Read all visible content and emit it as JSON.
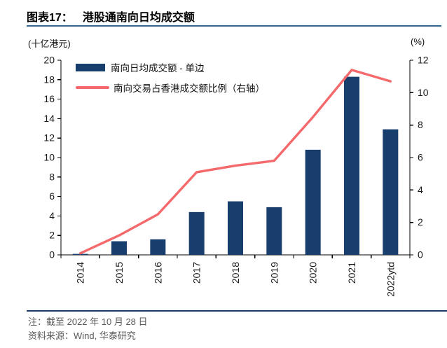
{
  "header": {
    "figure_label": "图表17：",
    "figure_title": "港股通南向日均成交额"
  },
  "chart": {
    "left_axis_unit": "(十亿港元)",
    "right_axis_unit": "(%)",
    "legend": [
      {
        "label": "南向日均成交额 - 单边",
        "type": "bar",
        "color": "#183e6d"
      },
      {
        "label": "南向交易占香港成交额比例（右轴）",
        "type": "line",
        "color": "#f4696b"
      }
    ]
  },
  "chart_data": {
    "type": "bar",
    "categories": [
      "2014",
      "2015",
      "2016",
      "2017",
      "2018",
      "2019",
      "2020",
      "2021",
      "2022ytd"
    ],
    "series": [
      {
        "name": "南向日均成交额 - 单边",
        "type": "bar",
        "axis": "left",
        "color": "#183e6d",
        "values": [
          0.1,
          1.4,
          1.6,
          4.4,
          5.5,
          4.9,
          10.8,
          18.3,
          12.9
        ]
      },
      {
        "name": "南向交易占香港成交额比例（右轴）",
        "type": "line",
        "axis": "right",
        "color": "#f4696b",
        "values": [
          0.1,
          1.2,
          2.5,
          5.1,
          5.5,
          5.8,
          8.5,
          11.4,
          10.7
        ]
      }
    ],
    "title": "港股通南向日均成交额",
    "xlabel": "",
    "ylabel_left": "(十亿港元)",
    "ylabel_right": "(%)",
    "left_axis": {
      "min": 0,
      "max": 20,
      "step": 2
    },
    "right_axis": {
      "min": 0,
      "max": 12,
      "step": 2
    },
    "grid": false,
    "legend_position": "top-left"
  },
  "footer": {
    "note": "注：截至 2022 年 10 月 28 日",
    "source": "资料来源：Wind, 华泰研究"
  },
  "colors": {
    "bar": "#183e6d",
    "line": "#f4696b",
    "title_rule": "#35648c",
    "footer_rule": "#1f3864",
    "note_text": "#595959",
    "axis": "#000000"
  }
}
